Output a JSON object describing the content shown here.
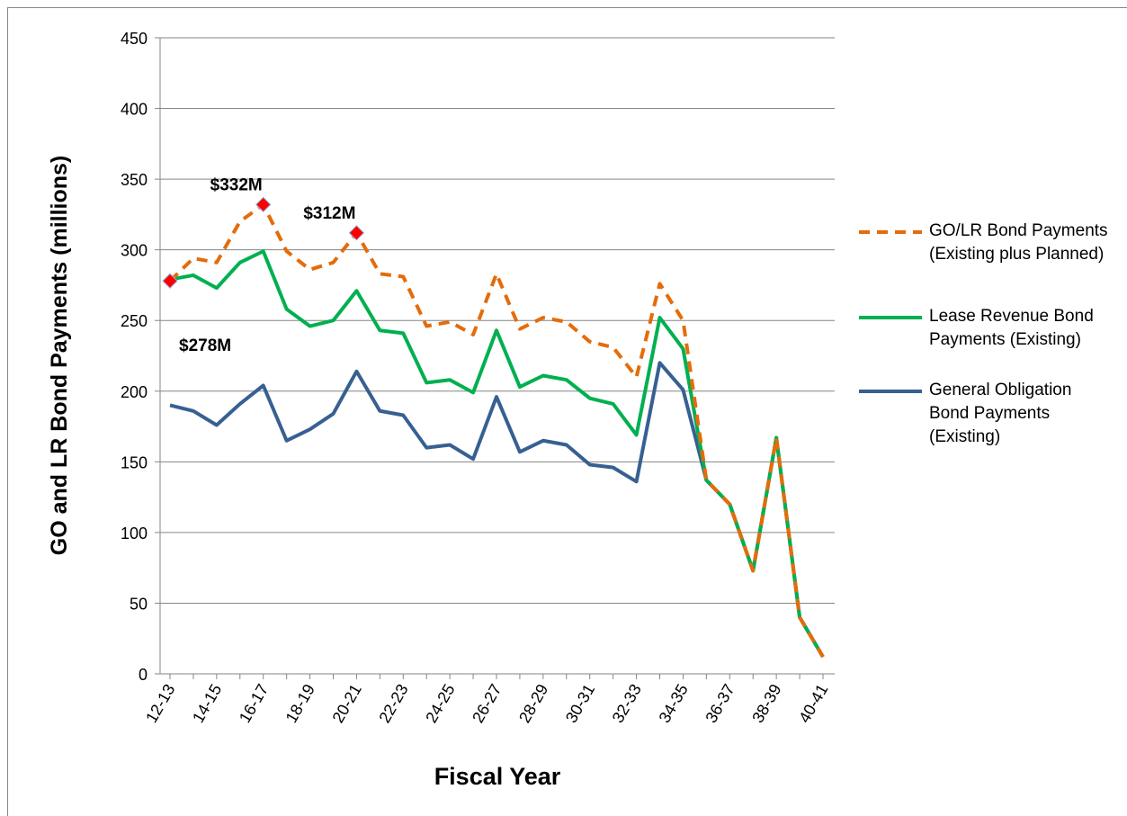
{
  "chart_data": {
    "type": "line",
    "xlabel": "Fiscal Year",
    "ylabel": "GO and LR Bond Payments (millions)",
    "categories": [
      "12-13",
      null,
      "14-15",
      null,
      "16-17",
      null,
      "18-19",
      null,
      "20-21",
      null,
      "22-23",
      null,
      "24-25",
      null,
      "26-27",
      null,
      "28-29",
      null,
      "30-31",
      null,
      "32-33",
      null,
      "34-35",
      null,
      "36-37",
      null,
      "38-39",
      null,
      "40-41"
    ],
    "series": [
      {
        "name": "GO/LR Bond Payments (Existing plus Planned)",
        "color": "#e46c0a",
        "dashed": true,
        "values": [
          278,
          294,
          291,
          320,
          332,
          299,
          286,
          291,
          312,
          283,
          281,
          246,
          249,
          240,
          283,
          244,
          252,
          249,
          235,
          231,
          210,
          276,
          250,
          137,
          120,
          73,
          167,
          40,
          12
        ]
      },
      {
        "name": "Lease Revenue Bond Payments (Existing)",
        "color": "#00b050",
        "dashed": false,
        "values": [
          279,
          282,
          273,
          291,
          299,
          258,
          246,
          250,
          271,
          243,
          241,
          206,
          208,
          199,
          243,
          203,
          211,
          208,
          195,
          191,
          169,
          252,
          230,
          137,
          120,
          73,
          167,
          40,
          12
        ]
      },
      {
        "name": "General Obligation Bond Payments (Existing)",
        "color": "#376092",
        "dashed": false,
        "values": [
          190,
          186,
          176,
          191,
          204,
          165,
          173,
          184,
          214,
          186,
          183,
          160,
          162,
          152,
          196,
          157,
          165,
          162,
          148,
          146,
          136,
          220,
          201,
          137,
          120,
          73,
          167,
          40,
          12
        ]
      }
    ],
    "annotations": [
      {
        "text": "$278M",
        "value": 278
      },
      {
        "text": "$332M",
        "value": 332
      },
      {
        "text": "$312M",
        "value": 312
      }
    ],
    "ylim": [
      0,
      450
    ],
    "yticks": [
      0,
      50,
      100,
      150,
      200,
      250,
      300,
      350,
      400,
      450
    ],
    "grid": true,
    "legend": "right"
  }
}
